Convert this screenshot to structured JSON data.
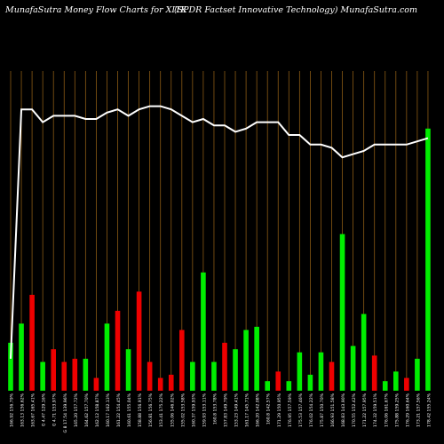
{
  "header": {
    "left_title": "MunafaSutra  Money Flow  Charts for XITK",
    "right_title": "(SPDR Factset Innovative    Technology) MunafaSutra.com"
  },
  "colors": {
    "background": "#000000",
    "grid": "#8a5a14",
    "up": "#00ee00",
    "down": "#ee0000",
    "line": "#ffffff",
    "label": "#ffffff"
  },
  "chart_data": {
    "type": "bar",
    "title": "MunafaSutra  Money Flow  Charts for XITK",
    "subtitle": "(SPDR Factset Innovative    Technology) MunafaSutra.com",
    "categories": [
      "166.92 156.79%",
      "163.13 156.62%",
      "163.67 165.41%",
      "G 4.47 129.16%",
      "G 4.71 153.97%",
      "G 8 17.54 139.96%",
      "165.20 157.72%",
      "164.62 157.70%",
      "162.12 158.87%",
      "160.17 162.13%",
      "161.22 154.45%",
      "160.61 155.04%",
      "158.88 156.91%",
      "156.81 156.75%",
      "153.41 175.22%",
      "155.06 146.02%",
      "155.02 153.58%",
      "160.37 159.93%",
      "159.93 153.11%",
      "160.8 153.78%",
      "157.83 149.79%",
      "153.23 149.41%",
      "161.17 145.71%",
      "166.20 142.08%",
      "160.8 142.57%",
      "171.29 150.95%",
      "176.95 157.59%",
      "175.53 157.46%",
      "176.02 154.22%",
      "175.87 150.70%",
      "166.93 151.58%",
      "168.83 143.90%",
      "170.55 152.42%",
      "171.22 157.95%",
      "174.32 159.51%",
      "176.06 161.67%",
      "175.88 159.25%",
      "176.29 160.64%",
      "173.21 157.56%",
      "178.42 155.24%"
    ],
    "series": [
      {
        "values": [
          15,
          21,
          30,
          9,
          13,
          9,
          10,
          10,
          4,
          21,
          25,
          13,
          31,
          9,
          4,
          5,
          19,
          9,
          37,
          9,
          15,
          13,
          19,
          20,
          3,
          6,
          3,
          12,
          5,
          12,
          9,
          49,
          14,
          24,
          11,
          3,
          6,
          4,
          10,
          82
        ],
        "colors": [
          "green",
          "green",
          "red",
          "green",
          "red",
          "red",
          "red",
          "green",
          "red",
          "green",
          "red",
          "green",
          "red",
          "red",
          "red",
          "red",
          "red",
          "green",
          "green",
          "green",
          "red",
          "green",
          "green",
          "green",
          "green",
          "red",
          "green",
          "green",
          "green",
          "green",
          "red",
          "green",
          "green",
          "green",
          "red",
          "green",
          "green",
          "red",
          "green",
          "green"
        ]
      },
      {
        "line_values": [
          10,
          88,
          88,
          84,
          86,
          86,
          86,
          85,
          85,
          87,
          88,
          86,
          88,
          89,
          89,
          88,
          86,
          84,
          85,
          83,
          83,
          81,
          82,
          84,
          84,
          84,
          80,
          80,
          77,
          77,
          76,
          73,
          74,
          75,
          77,
          77,
          77,
          77,
          78,
          79
        ]
      }
    ],
    "ylim": [
      0,
      100
    ],
    "grid": true
  }
}
